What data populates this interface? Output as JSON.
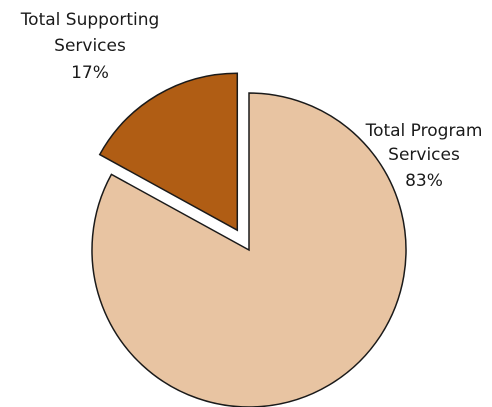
{
  "chart_data": {
    "type": "pie",
    "title": "",
    "slices": [
      {
        "label_lines": [
          "Total Program",
          "Services"
        ],
        "percent_label": "83%",
        "value": 83,
        "color": "#e8c4a2",
        "exploded": false
      },
      {
        "label_lines": [
          "Total Supporting",
          "Services"
        ],
        "percent_label": "17%",
        "value": 17,
        "color": "#b05d14",
        "exploded": true
      }
    ],
    "start_angle_deg": 0,
    "direction": "clockwise",
    "edge_color": "#1a1a1a"
  }
}
